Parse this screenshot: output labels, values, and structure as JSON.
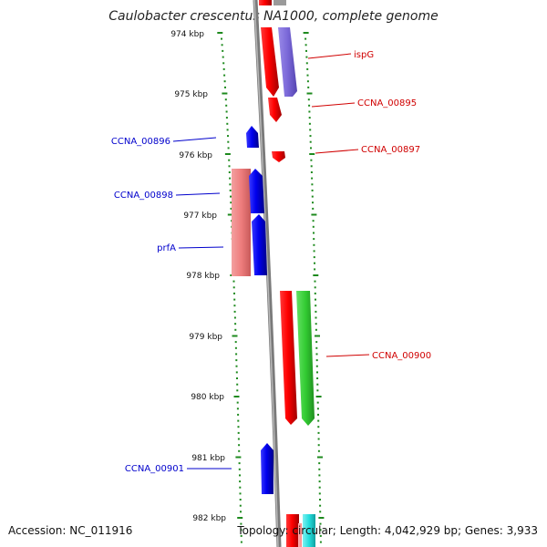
{
  "title": "Caulobacter crescentus NA1000, complete genome",
  "accession": "Accession: NC_011916",
  "stats": "Topology: circular; Length: 4,042,929 bp; Genes: 3,933",
  "colors": {
    "backbone": "#8a8a8a",
    "ticks": "#1e8a1e",
    "forward_label": "#d00000",
    "reverse_label": "#0000cc"
  },
  "scale_labels": [
    "974 kbp",
    "975 kbp",
    "976 kbp",
    "977 kbp",
    "978 kbp",
    "979 kbp",
    "980 kbp",
    "981 kbp",
    "982 kbp"
  ],
  "gene_labels": [
    {
      "text": "ispG",
      "side": "right",
      "color": "#d00000"
    },
    {
      "text": "CCNA_00895",
      "side": "right",
      "color": "#d00000"
    },
    {
      "text": "CCNA_00896",
      "side": "left",
      "color": "#0000cc"
    },
    {
      "text": "CCNA_00897",
      "side": "right",
      "color": "#d00000"
    },
    {
      "text": "CCNA_00898",
      "side": "left",
      "color": "#0000cc"
    },
    {
      "text": "prfA",
      "side": "left",
      "color": "#0000cc"
    },
    {
      "text": "CCNA_00900",
      "side": "right",
      "color": "#d00000"
    },
    {
      "text": "CCNA_00901",
      "side": "left",
      "color": "#0000cc"
    }
  ]
}
